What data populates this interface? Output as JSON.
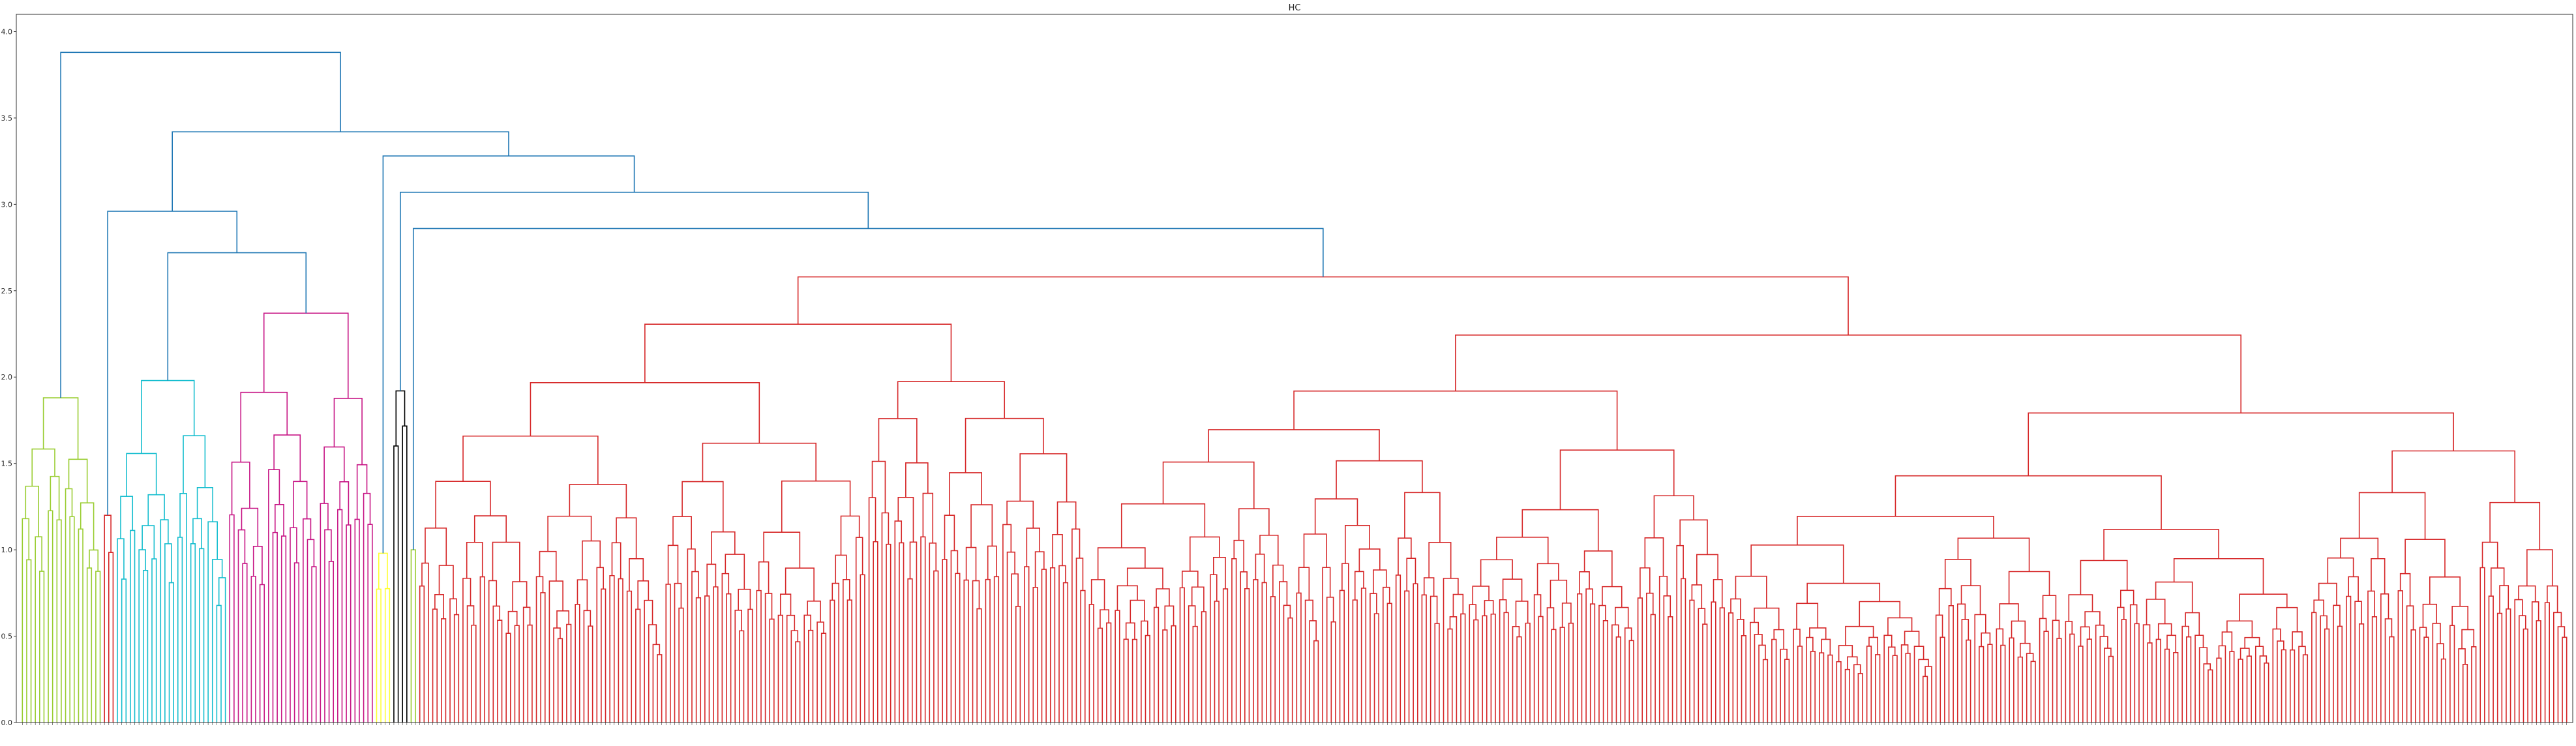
{
  "chart_data": {
    "type": "dendrogram",
    "title": "HC",
    "xlabel": "",
    "ylabel": "",
    "ylim": [
      0,
      4.1
    ],
    "yticks": [
      "0.0",
      "0.5",
      "1.0",
      "1.5",
      "2.0",
      "2.5",
      "3.0",
      "3.5",
      "4.0"
    ],
    "ytick_values": [
      0,
      0.5,
      1.0,
      1.5,
      2.0,
      2.5,
      3.0,
      3.5,
      4.0
    ],
    "grid": false,
    "leaf_labels_legible": false,
    "leaf_count_approx": 590,
    "root_height": 3.88,
    "clusters": [
      {
        "color": "#9acd32",
        "leaf_range": [
          0,
          18
        ],
        "merge_height": 1.88
      },
      {
        "color": "#d62728",
        "leaf_range": [
          19,
          21
        ],
        "merge_height": 1.2
      },
      {
        "color": "#17becf",
        "leaf_range": [
          22,
          47
        ],
        "merge_height": 1.98
      },
      {
        "color": "#c71585",
        "leaf_range": [
          48,
          81
        ],
        "merge_height": 2.37
      },
      {
        "color": "#ffff33",
        "leaf_range": [
          82,
          85
        ],
        "merge_height": 0.98
      },
      {
        "color": "#000000",
        "leaf_range": [
          86,
          89
        ],
        "merge_height": 1.92
      },
      {
        "color": "#9acd32",
        "leaf_range": [
          90,
          91
        ],
        "merge_height": 1.0
      },
      {
        "color": "#d62728",
        "leaf_range": [
          92,
          589
        ],
        "merge_height": 2.58
      }
    ],
    "above_threshold_color": "#1f77b4",
    "top_merges": [
      {
        "height": 3.88,
        "left": "green cluster",
        "right": "rest"
      },
      {
        "height": 3.42,
        "left": "red-small/cyan/magenta group",
        "right": "yellow/black/green/red group"
      },
      {
        "height": 3.28,
        "left": "yellow/black group",
        "right": "green/red group"
      },
      {
        "height": 3.07,
        "left": "black group",
        "right": "green/red group"
      },
      {
        "height": 2.96,
        "left": "small red cluster",
        "right": "cyan/magenta group"
      },
      {
        "height": 2.86,
        "left": "small green cluster",
        "right": "large red cluster"
      },
      {
        "height": 2.72,
        "left": "cyan cluster",
        "right": "magenta cluster"
      }
    ]
  }
}
